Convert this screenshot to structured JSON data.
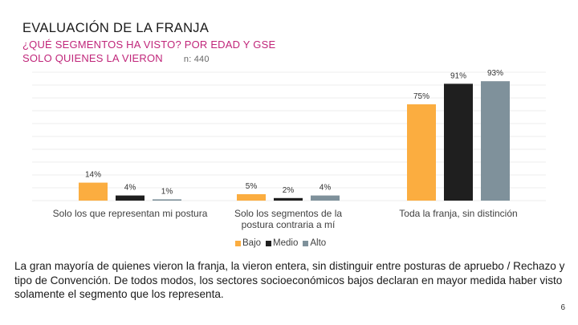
{
  "slide": {
    "title": "EVALUACIÓN DE LA FRANJA",
    "subtitle_line1": "¿QUÉ SEGMENTOS HA VISTO? POR EDAD Y GSE",
    "subtitle_line2": "SOLO QUIENES LA VIERON",
    "sample_note": "n: 440",
    "body": "La gran mayoría de quienes vieron la franja, la vieron entera, sin distinguir entre posturas de apruebo / Rechazo y tipo de Convención. De todos modos, los sectores socioeconómicos bajos declaran en mayor medida haber visto solamente el segmento que los representa.",
    "page_number": "6"
  },
  "chart_data": {
    "type": "bar",
    "categories": [
      "Solo los que representan mi postura",
      "Solo los segmentos de la postura contraria a mí",
      "Toda la franja, sin distinción"
    ],
    "series": [
      {
        "name": "Bajo",
        "color": "#fbad40",
        "values": [
          14,
          5,
          75
        ],
        "labels": [
          "14%",
          "5%",
          "75%"
        ]
      },
      {
        "name": "Medio",
        "color": "#1f1f1f",
        "values": [
          4,
          2,
          91
        ],
        "labels": [
          "4%",
          "2%",
          "91%"
        ]
      },
      {
        "name": "Alto",
        "color": "#7f919b",
        "values": [
          1,
          4,
          93
        ],
        "labels": [
          "1%",
          "4%",
          "93%"
        ]
      }
    ],
    "ylim": [
      0,
      100
    ],
    "grid": true,
    "legend": "bottom"
  }
}
